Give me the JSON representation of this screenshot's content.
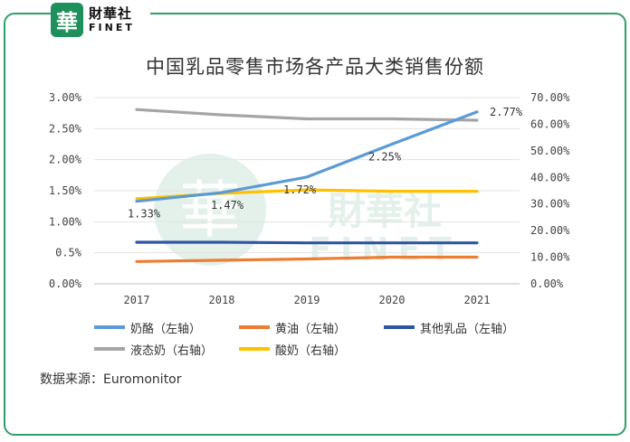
{
  "brand": {
    "logo_char": "華",
    "name_cn": "財華社",
    "name_en": "FINET"
  },
  "watermark": {
    "text_cn": "財華社",
    "text_en": "FINET"
  },
  "source_text": "数据来源：Euromonitor",
  "chart_data": {
    "type": "line",
    "title": "中国乳品零售市场各产品大类销售份额",
    "categories": [
      "2017",
      "2018",
      "2019",
      "2020",
      "2021"
    ],
    "left_axis": {
      "ylim": [
        0,
        3.0
      ],
      "ticks": [
        "0.00%",
        "0.5%",
        "1.00%",
        "1.50%",
        "2.00%",
        "2.50%",
        "3.00%"
      ]
    },
    "right_axis": {
      "ylim": [
        0,
        70
      ],
      "ticks": [
        "0.00%",
        "10.00%",
        "20.00%",
        "30.00%",
        "40.00%",
        "50.00%",
        "60.00%",
        "70.00%"
      ]
    },
    "series": [
      {
        "name": "奶酪（左轴）",
        "axis": "left",
        "color": "#5b9bd5",
        "values": [
          1.33,
          1.47,
          1.72,
          2.25,
          2.77
        ],
        "labels": [
          "1.33%",
          "1.47%",
          "1.72%",
          "2.25%",
          "2.77%"
        ]
      },
      {
        "name": "黄油（左轴）",
        "axis": "left",
        "color": "#ed7d31",
        "values": [
          0.36,
          0.38,
          0.4,
          0.43,
          0.43
        ]
      },
      {
        "name": "其他乳品（左轴）",
        "axis": "left",
        "color": "#2f55a4",
        "values": [
          0.67,
          0.67,
          0.66,
          0.66,
          0.66
        ]
      },
      {
        "name": "液态奶（右轴）",
        "axis": "right",
        "color": "#a5a5a5",
        "values": [
          65.5,
          63.5,
          62.0,
          62.0,
          61.5
        ]
      },
      {
        "name": "酸奶（右轴）",
        "axis": "right",
        "color": "#ffc000",
        "values": [
          32.0,
          34.0,
          35.3,
          34.8,
          34.8
        ]
      }
    ]
  }
}
